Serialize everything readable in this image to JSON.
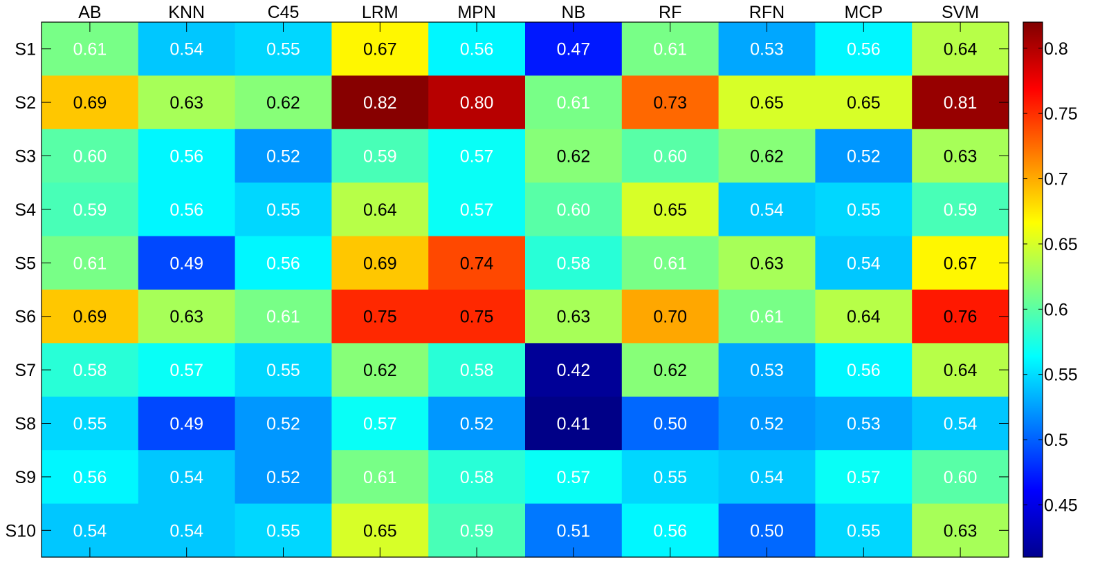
{
  "chart_data": {
    "type": "heatmap",
    "title": "",
    "xlabel": "",
    "ylabel": "",
    "columns": [
      "AB",
      "KNN",
      "C45",
      "LRM",
      "MPN",
      "NB",
      "RF",
      "RFN",
      "MCP",
      "SVM"
    ],
    "rows": [
      "S1",
      "S2",
      "S3",
      "S4",
      "S5",
      "S6",
      "S7",
      "S8",
      "S9",
      "S10"
    ],
    "values": [
      [
        0.61,
        0.54,
        0.55,
        0.67,
        0.56,
        0.47,
        0.61,
        0.53,
        0.56,
        0.64
      ],
      [
        0.69,
        0.63,
        0.62,
        0.82,
        0.8,
        0.61,
        0.73,
        0.65,
        0.65,
        0.81
      ],
      [
        0.6,
        0.56,
        0.52,
        0.59,
        0.57,
        0.62,
        0.6,
        0.62,
        0.52,
        0.63
      ],
      [
        0.59,
        0.56,
        0.55,
        0.64,
        0.57,
        0.6,
        0.65,
        0.54,
        0.55,
        0.59
      ],
      [
        0.61,
        0.49,
        0.56,
        0.69,
        0.74,
        0.58,
        0.61,
        0.63,
        0.54,
        0.67
      ],
      [
        0.69,
        0.63,
        0.61,
        0.75,
        0.75,
        0.63,
        0.7,
        0.61,
        0.64,
        0.76
      ],
      [
        0.58,
        0.57,
        0.55,
        0.62,
        0.58,
        0.42,
        0.62,
        0.53,
        0.56,
        0.64
      ],
      [
        0.55,
        0.49,
        0.52,
        0.57,
        0.52,
        0.41,
        0.5,
        0.52,
        0.53,
        0.54
      ],
      [
        0.56,
        0.54,
        0.52,
        0.61,
        0.58,
        0.57,
        0.55,
        0.54,
        0.57,
        0.6
      ],
      [
        0.54,
        0.54,
        0.55,
        0.65,
        0.59,
        0.51,
        0.56,
        0.5,
        0.55,
        0.63
      ]
    ],
    "colorbar": {
      "colormap": "jet",
      "range": [
        0.41,
        0.82
      ],
      "ticks": [
        0.45,
        0.5,
        0.55,
        0.6,
        0.65,
        0.7,
        0.75,
        0.8
      ],
      "tick_labels": [
        "0.45",
        "0.5",
        "0.55",
        "0.6",
        "0.65",
        "0.7",
        "0.75",
        "0.8"
      ],
      "placement": "right"
    },
    "label_colors": {
      "dark": "#000000",
      "light": "#ffffff"
    },
    "grid": false
  }
}
